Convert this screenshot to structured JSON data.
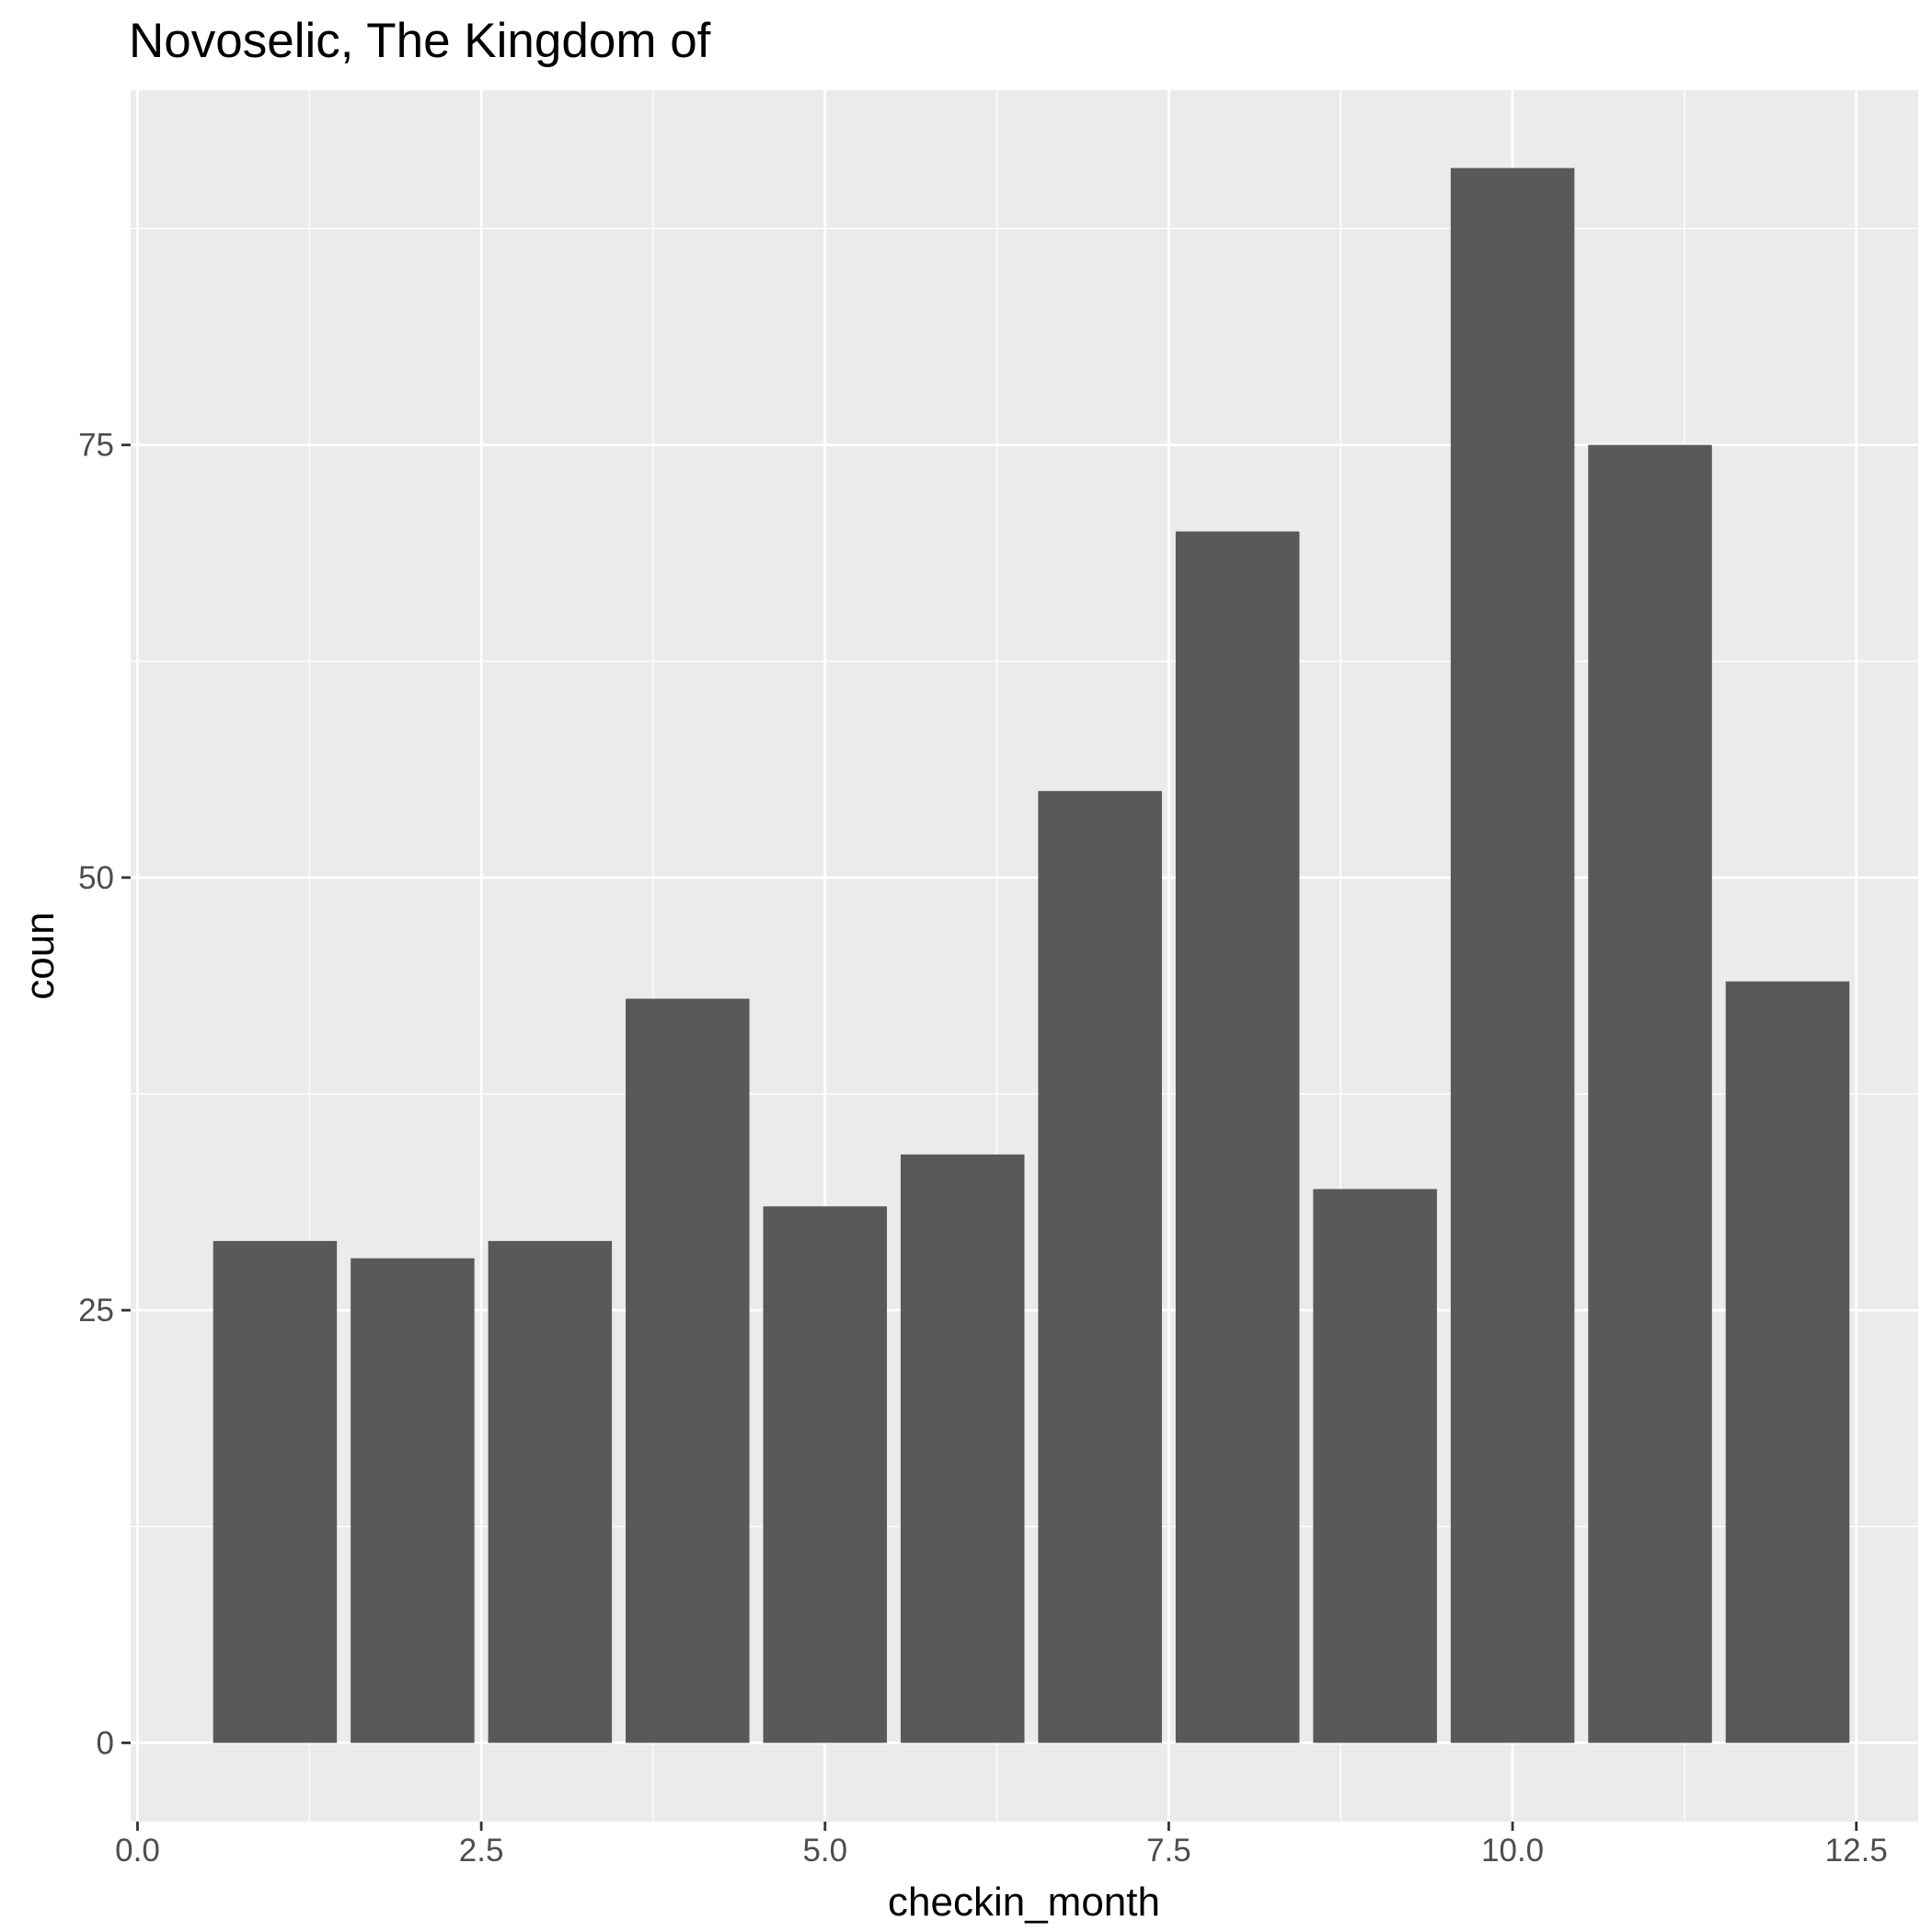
{
  "chart_data": {
    "type": "bar",
    "title": "Novoselic, The Kingdom of",
    "xlabel": "checkin_month",
    "ylabel": "coun",
    "x": [
      1,
      2,
      3,
      4,
      5,
      6,
      7,
      8,
      9,
      10,
      11,
      12
    ],
    "values": [
      29,
      28,
      29,
      43,
      31,
      34,
      55,
      70,
      32,
      91,
      75,
      44
    ],
    "xlim": [
      -0.05,
      12.95
    ],
    "ylim": [
      -4.55,
      95.5
    ],
    "x_ticks": [
      0.0,
      2.5,
      5.0,
      7.5,
      10.0,
      12.5
    ],
    "x_tick_labels": [
      "0.0",
      "2.5",
      "5.0",
      "7.5",
      "10.0",
      "12.5"
    ],
    "y_ticks": [
      0,
      25,
      50,
      75
    ],
    "y_tick_labels": [
      "0",
      "25",
      "50",
      "75"
    ],
    "bar_width": 0.9,
    "grid": true,
    "colors": {
      "bar": "#595959",
      "panel": "#ebebeb",
      "grid": "#ffffff",
      "tick_text": "#4d4d4d",
      "tick_mark": "#333333"
    }
  }
}
